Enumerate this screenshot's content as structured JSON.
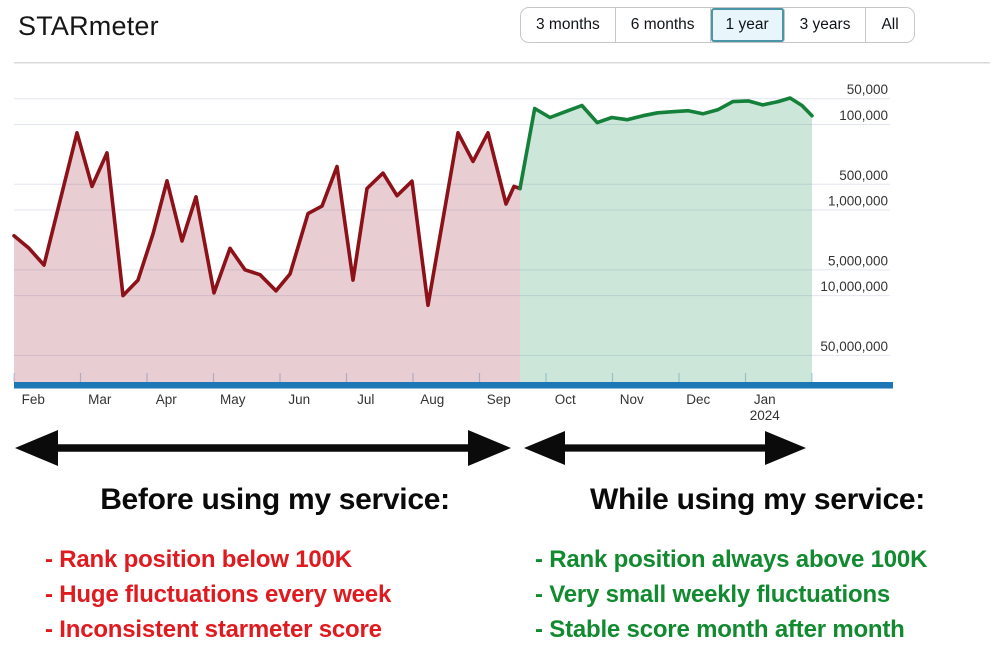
{
  "header": {
    "title": "STARmeter",
    "range_buttons": [
      {
        "label": "3 months",
        "selected": false
      },
      {
        "label": "6 months",
        "selected": false
      },
      {
        "label": "1 year",
        "selected": true
      },
      {
        "label": "3 years",
        "selected": false
      },
      {
        "label": "All",
        "selected": false
      }
    ],
    "selected_colors": {
      "bg": "#e8f6fb",
      "border": "#4b96a6"
    }
  },
  "chart_data": {
    "type": "area",
    "title": "STARmeter rank over 1 year (log scale, inverted: lower rank number = better)",
    "y_axis": {
      "scale": "log10-inverted",
      "tick_labels": [
        "50,000",
        "100,000",
        "500,000",
        "1,000,000",
        "5,000,000",
        "10,000,000",
        "50,000,000"
      ],
      "tick_values": [
        50000,
        100000,
        500000,
        1000000,
        5000000,
        10000000,
        50000000
      ],
      "range_log10": [
        4.27,
        8.01
      ]
    },
    "x_axis": {
      "months": [
        "Feb",
        "Mar",
        "Apr",
        "May",
        "Jun",
        "Jul",
        "Aug",
        "Sep",
        "Oct",
        "Nov",
        "Dec",
        "Jan"
      ],
      "year_label": "2024",
      "range_months": [
        0,
        12
      ]
    },
    "layout": {
      "grid_color": "#e2e6ef",
      "axis_bar_color": "#1d76b5",
      "tick_mark_color": "#b9d2ea",
      "top_border_color": "#d9d9d9",
      "label_color": "#333333",
      "grid": true,
      "legend": false
    },
    "series": [
      {
        "name": "before-service",
        "color": "#8c1118",
        "fill": "rgba(150,30,55,0.22)",
        "points": [
          [
            0,
            2000000
          ],
          [
            0.226,
            2800000
          ],
          [
            0.451,
            4400000
          ],
          [
            0.947,
            125000
          ],
          [
            1.173,
            530000
          ],
          [
            1.398,
            215000
          ],
          [
            1.639,
            10000000
          ],
          [
            1.865,
            6600000
          ],
          [
            2.09,
            1900000
          ],
          [
            2.301,
            455000
          ],
          [
            2.526,
            2300000
          ],
          [
            2.737,
            700000
          ],
          [
            3.008,
            9300000
          ],
          [
            3.248,
            2800000
          ],
          [
            3.474,
            5000000
          ],
          [
            3.699,
            5700000
          ],
          [
            3.94,
            8800000
          ],
          [
            4.15,
            5600000
          ],
          [
            4.421,
            1100000
          ],
          [
            4.632,
            900000
          ],
          [
            4.857,
            310000
          ],
          [
            5.098,
            6600000
          ],
          [
            5.308,
            560000
          ],
          [
            5.549,
            370000
          ],
          [
            5.759,
            680000
          ],
          [
            5.985,
            460000
          ],
          [
            6.226,
            13000000
          ],
          [
            6.677,
            125000
          ],
          [
            6.902,
            270000
          ],
          [
            7.128,
            125000
          ],
          [
            7.398,
            850000
          ],
          [
            7.519,
            530000
          ],
          [
            7.609,
            560000
          ]
        ]
      },
      {
        "name": "while-service",
        "color": "#15803a",
        "fill": "rgba(25,140,85,0.22)",
        "points": [
          [
            7.609,
            560000
          ],
          [
            7.83,
            65000
          ],
          [
            8.06,
            83000
          ],
          [
            8.29,
            71000
          ],
          [
            8.54,
            60000
          ],
          [
            8.77,
            95000
          ],
          [
            8.99,
            83000
          ],
          [
            9.22,
            88000
          ],
          [
            9.46,
            79000
          ],
          [
            9.68,
            73000
          ],
          [
            9.91,
            71000
          ],
          [
            10.14,
            69000
          ],
          [
            10.36,
            75000
          ],
          [
            10.59,
            67000
          ],
          [
            10.81,
            54000
          ],
          [
            11.04,
            53000
          ],
          [
            11.26,
            59000
          ],
          [
            11.49,
            54000
          ],
          [
            11.67,
            49000
          ],
          [
            11.85,
            60000
          ],
          [
            12,
            79000
          ]
        ]
      }
    ]
  },
  "annotations": {
    "before": {
      "heading": "Before using my service:",
      "color": "#e01b20",
      "items": [
        "- Rank position below 100K",
        "- Huge fluctuations every week",
        "- Inconsistent starmeter score"
      ]
    },
    "while": {
      "heading": "While using my service:",
      "color": "#128a30",
      "items": [
        "- Rank position always above 100K",
        "- Very small weekly fluctuations",
        "- Stable score month after month"
      ]
    }
  }
}
